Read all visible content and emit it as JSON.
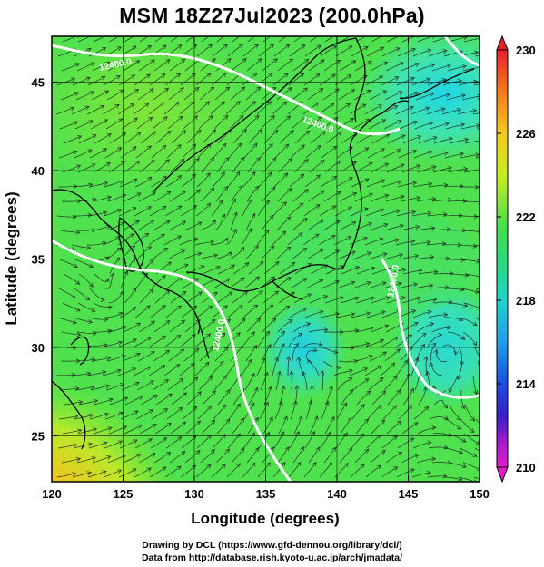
{
  "title": "MSM 18Z27Jul2023 (200.0hPa)",
  "xlabel": "Longitude (degrees)",
  "ylabel": "Latitude  (degrees)",
  "credit_line1": "Drawing by DCL (https://www.gfd-dennou.org/library/dcl/)",
  "credit_line2": "Data from http://database.rish.kyoto-u.ac.jp/arch/jmadata/",
  "x_ticks": [
    120,
    125,
    130,
    135,
    140,
    145,
    150
  ],
  "y_ticks": [
    25,
    30,
    35,
    40,
    45
  ],
  "colorbar_ticks": [
    230,
    226,
    222,
    218,
    214,
    210
  ],
  "contour_labels": [
    "12400.0",
    "12400.0",
    "12400.0",
    "12400.0"
  ],
  "chart_data": {
    "type": "heatmap",
    "title": "MSM 18Z27Jul2023 (200.0hPa)",
    "xlabel": "Longitude (degrees)",
    "ylabel": "Latitude  (degrees)",
    "xlim": [
      120,
      150
    ],
    "ylim": [
      22.4,
      47.6
    ],
    "colorbar_range": [
      210,
      230
    ],
    "colorbar_ticks": [
      210,
      214,
      218,
      222,
      226,
      230
    ],
    "contour_value": 12400.0,
    "grid": true
  }
}
